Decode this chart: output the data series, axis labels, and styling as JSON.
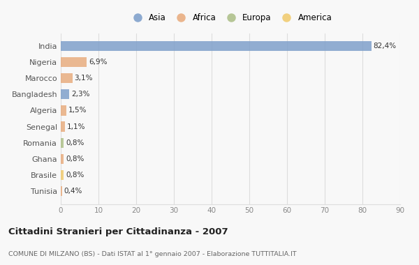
{
  "countries": [
    "India",
    "Nigeria",
    "Marocco",
    "Bangladesh",
    "Algeria",
    "Senegal",
    "Romania",
    "Ghana",
    "Brasile",
    "Tunisia"
  ],
  "values": [
    82.4,
    6.9,
    3.1,
    2.3,
    1.5,
    1.1,
    0.8,
    0.8,
    0.8,
    0.4
  ],
  "labels": [
    "82,4%",
    "6,9%",
    "3,1%",
    "2,3%",
    "1,5%",
    "1,1%",
    "0,8%",
    "0,8%",
    "0,8%",
    "0,4%"
  ],
  "colors": [
    "#7b9dc9",
    "#e8aa7a",
    "#e8aa7a",
    "#7b9dc9",
    "#e8aa7a",
    "#e8aa7a",
    "#abbe85",
    "#e8aa7a",
    "#f0c96a",
    "#e8aa7a"
  ],
  "legend": [
    {
      "label": "Asia",
      "color": "#7b9dc9"
    },
    {
      "label": "Africa",
      "color": "#e8aa7a"
    },
    {
      "label": "Europa",
      "color": "#abbe85"
    },
    {
      "label": "America",
      "color": "#f0c96a"
    }
  ],
  "title": "Cittadini Stranieri per Cittadinanza - 2007",
  "subtitle": "COMUNE DI MILZANO (BS) - Dati ISTAT al 1° gennaio 2007 - Elaborazione TUTTITALIA.IT",
  "xlim": [
    0,
    90
  ],
  "xticks": [
    0,
    10,
    20,
    30,
    40,
    50,
    60,
    70,
    80,
    90
  ],
  "bg_color": "#f8f8f8",
  "grid_color": "#dddddd",
  "bar_height": 0.62
}
